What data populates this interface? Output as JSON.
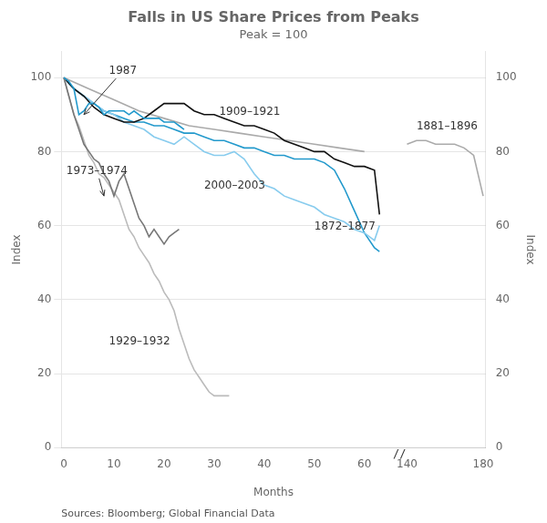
{
  "chart_data": {
    "type": "line",
    "title": "Falls in US Share Prices from Peaks",
    "subtitle": "Peak = 100",
    "source": "Sources: Bloomberg; Global Financial Data",
    "xlabel": "Months",
    "ylabel": "Index",
    "y2label": "Index",
    "xlim": [
      -0.5,
      181.3
    ],
    "xticks": [
      0,
      10,
      20,
      30,
      40,
      50,
      60,
      140,
      180
    ],
    "ylim": [
      0,
      107
    ],
    "yticks": [
      0,
      20,
      40,
      60,
      80,
      100
    ],
    "y2lim": [
      0,
      107
    ],
    "y2ticks": [
      0,
      20,
      40,
      60,
      80,
      100
    ],
    "grid": "y",
    "axis_break": "//",
    "series": [
      {
        "name": "1987",
        "color": "#2299cc",
        "x": [
          0,
          1,
          2,
          3,
          4,
          5,
          6,
          7,
          8,
          9,
          10,
          11,
          12,
          13,
          14,
          15,
          16,
          17,
          18,
          19,
          20,
          21,
          22,
          23,
          24
        ],
        "values": [
          100,
          99,
          97,
          90,
          91,
          93,
          93,
          92,
          90,
          91,
          91,
          91,
          91,
          90,
          91,
          90,
          89,
          89,
          89,
          89,
          88,
          88,
          88,
          87,
          86
        ]
      },
      {
        "name": "1973–1974",
        "color": "#777777",
        "x": [
          0,
          1,
          2,
          3,
          4,
          5,
          6,
          7,
          8,
          9,
          10,
          11,
          12,
          13,
          14,
          15,
          16,
          17,
          18,
          19,
          20,
          21,
          22,
          23
        ],
        "values": [
          100,
          95,
          90,
          86,
          82,
          80,
          78,
          77,
          74,
          72,
          68,
          72,
          74,
          70,
          66,
          62,
          60,
          57,
          59,
          57,
          55,
          57,
          58,
          59
        ]
      },
      {
        "name": "1929–1932",
        "color": "#bbbbbb",
        "x": [
          0,
          1,
          2,
          3,
          4,
          5,
          6,
          7,
          8,
          9,
          10,
          11,
          12,
          13,
          14,
          15,
          16,
          17,
          18,
          19,
          20,
          21,
          22,
          23,
          24,
          25,
          26,
          27,
          28,
          29,
          30,
          31,
          32,
          33
        ],
        "values": [
          100,
          95,
          90,
          87,
          83,
          79,
          77,
          74,
          73,
          71,
          69,
          67,
          63,
          59,
          57,
          54,
          52,
          50,
          47,
          45,
          42,
          40,
          37,
          32,
          28,
          24,
          21,
          19,
          17,
          15,
          14,
          14,
          14,
          14
        ]
      },
      {
        "name": "1909–1921",
        "color": "#111111",
        "x": [
          0,
          2,
          4,
          6,
          8,
          10,
          12,
          14,
          16,
          18,
          20,
          22,
          24,
          26,
          28,
          30,
          32,
          34,
          36,
          38,
          40,
          42,
          44,
          46,
          48,
          50,
          52,
          54,
          56,
          58,
          60,
          62,
          63
        ],
        "values": [
          100,
          97,
          95,
          92,
          90,
          89,
          88,
          88,
          89,
          91,
          93,
          93,
          93,
          91,
          90,
          90,
          89,
          88,
          87,
          87,
          86,
          85,
          83,
          82,
          81,
          80,
          80,
          78,
          77,
          76,
          76,
          75,
          63
        ]
      },
      {
        "name": "2000–2003",
        "color": "#88ccee",
        "x": [
          0,
          2,
          4,
          6,
          8,
          10,
          12,
          14,
          16,
          18,
          20,
          22,
          24,
          26,
          28,
          30,
          32,
          34,
          36,
          38,
          40,
          42,
          44,
          46,
          48,
          50,
          52,
          54,
          56,
          58,
          60,
          62,
          63
        ],
        "values": [
          100,
          97,
          95,
          93,
          91,
          90,
          88,
          87,
          86,
          84,
          83,
          82,
          84,
          82,
          80,
          79,
          79,
          80,
          78,
          74,
          71,
          70,
          68,
          67,
          66,
          65,
          63,
          62,
          61,
          59,
          58,
          56,
          60
        ]
      },
      {
        "name": "1872–1877",
        "color": "#2299cc",
        "x": [
          0,
          2,
          4,
          6,
          8,
          10,
          12,
          14,
          16,
          18,
          20,
          22,
          24,
          26,
          28,
          30,
          32,
          34,
          36,
          38,
          40,
          42,
          44,
          46,
          48,
          50,
          52,
          54,
          56,
          58,
          60,
          62,
          63
        ],
        "values": [
          100,
          97,
          95,
          93,
          91,
          90,
          89,
          88,
          88,
          87,
          87,
          86,
          85,
          85,
          84,
          83,
          83,
          82,
          81,
          81,
          80,
          79,
          79,
          78,
          78,
          78,
          77,
          75,
          70,
          64,
          58,
          54,
          53
        ]
      },
      {
        "name": "1881–1896",
        "color": "#aaaaaa",
        "x": [
          0,
          5,
          10,
          15,
          20,
          25,
          30,
          35,
          40,
          45,
          50,
          55,
          60,
          140,
          145,
          150,
          155,
          160,
          165,
          170,
          175,
          180
        ],
        "values": [
          100,
          97,
          94,
          91,
          89,
          87,
          86,
          85,
          84,
          83,
          82,
          81,
          80,
          82,
          83,
          83,
          82,
          82,
          82,
          81,
          79,
          68
        ]
      }
    ],
    "annotations": [
      {
        "text": "1987",
        "x": 9,
        "y": 101,
        "arrow": {
          "x": 4,
          "y": 90
        }
      },
      {
        "text": "1973–1974",
        "x": 0.5,
        "y": 74,
        "arrow": {
          "x": 8,
          "y": 68
        }
      },
      {
        "text": "1929–1932",
        "x": 9,
        "y": 28
      },
      {
        "text": "1909–1921",
        "x": 31,
        "y": 90
      },
      {
        "text": "2000–2003",
        "x": 28,
        "y": 70
      },
      {
        "text": "1872–1877",
        "x": 50,
        "y": 59
      },
      {
        "text": "1881–1896",
        "x": 145,
        "y": 86
      }
    ]
  }
}
